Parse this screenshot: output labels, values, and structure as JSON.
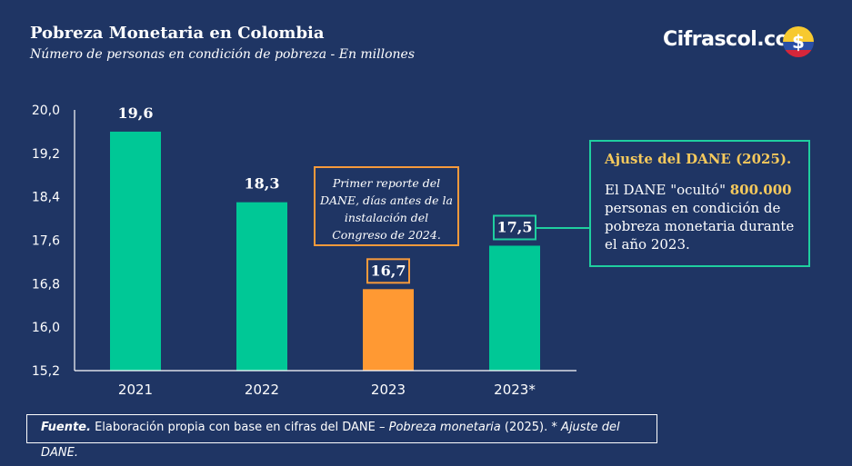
{
  "header": {
    "title": "Pobreza Monetaria en Colombia",
    "subtitle": "Número de personas en condición de pobreza - En millones",
    "brand": "Cifrascol.com",
    "logo_glyph": "$"
  },
  "chart_data": {
    "type": "bar",
    "categories": [
      "2021",
      "2022",
      "2023",
      "2023*"
    ],
    "values": [
      19.6,
      18.3,
      16.7,
      17.5
    ],
    "value_labels": [
      "19,6",
      "18,3",
      "16,7",
      "17,5"
    ],
    "bar_colors": [
      "#00c896",
      "#00c896",
      "#ff9933",
      "#00c896"
    ],
    "ylim": [
      15.2,
      20.0
    ],
    "yticks": [
      "15,2",
      "16,0",
      "16,8",
      "17,6",
      "18,4",
      "19,2",
      "20,0"
    ],
    "ytick_values": [
      15.2,
      16.0,
      16.8,
      17.6,
      18.4,
      19.2,
      20.0
    ],
    "grid": false
  },
  "annotations": {
    "report_note": "Primer reporte del DANE, días antes de la instalación del Congreso de 2024.",
    "adjust_title": "Ajuste del DANE (2025).",
    "adjust_text_pre": "El DANE \"ocultó\"",
    "adjust_highlight": "800.000",
    "adjust_text_post": "personas en condición de pobreza monetaria durante el año 2023."
  },
  "source": {
    "label": "Fuente.",
    "text_1": "Elaboración propia con base en cifras del DANE –",
    "publication": "Pobreza monetaria",
    "text_2": "(2025). *",
    "note": "Ajuste del DANE."
  },
  "colors": {
    "background": "#1f3564",
    "green": "#00c896",
    "orange": "#ff9933",
    "highlight": "#f5c95c"
  }
}
